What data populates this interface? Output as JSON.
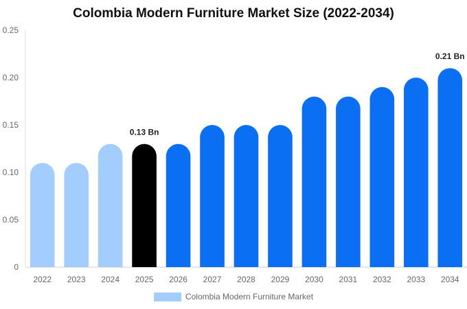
{
  "chart_data": {
    "type": "bar",
    "title": "Colombia Modern Furniture Market Size (2022-2034)",
    "categories": [
      "2022",
      "2023",
      "2024",
      "2025",
      "2026",
      "2027",
      "2028",
      "2029",
      "2030",
      "2031",
      "2032",
      "2033",
      "2034"
    ],
    "series": [
      {
        "name": "Colombia Modern Furniture Market",
        "values": [
          0.11,
          0.11,
          0.13,
          0.13,
          0.13,
          0.15,
          0.15,
          0.15,
          0.18,
          0.18,
          0.19,
          0.2,
          0.21
        ]
      }
    ],
    "bar_colors": [
      "#a3cdfd",
      "#a3cdfd",
      "#a3cdfd",
      "#000000",
      "#0a6ff2",
      "#0a6ff2",
      "#0a6ff2",
      "#0a6ff2",
      "#0a6ff2",
      "#0a6ff2",
      "#0a6ff2",
      "#0a6ff2",
      "#0a6ff2"
    ],
    "legend_color": "#a3cdfd",
    "ylim": [
      0,
      0.25
    ],
    "yticks": [
      "0",
      "0.05",
      "0.10",
      "0.15",
      "0.20",
      "0.25"
    ],
    "data_labels": [
      {
        "category": "2025",
        "text": "0.13 Bn"
      },
      {
        "category": "2034",
        "text": "0.21 Bn"
      }
    ],
    "grid": false,
    "legend_position": "bottom"
  }
}
